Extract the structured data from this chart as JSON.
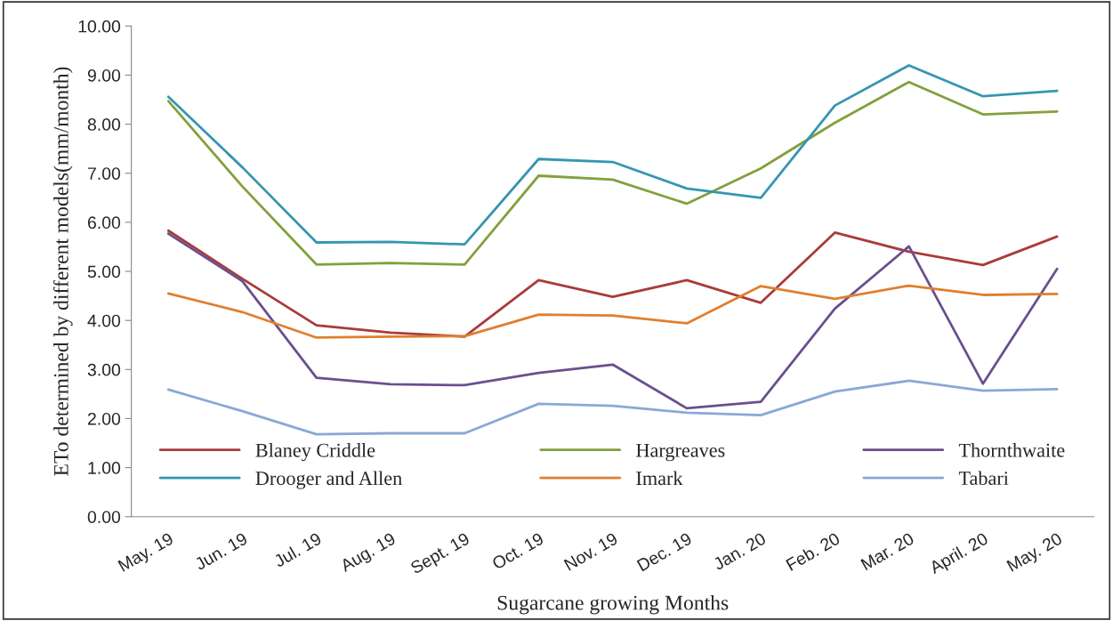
{
  "chart_data": {
    "type": "line",
    "xlabel": "Sugarcane growing Months",
    "ylabel": "ETo determined by different models(mm/month)",
    "categories": [
      "May. 19",
      "Jun. 19",
      "Jul. 19",
      "Aug. 19",
      "Sept. 19",
      "Oct. 19",
      "Nov. 19",
      "Dec. 19",
      "Jan. 20",
      "Feb. 20",
      "Mar. 20",
      "April. 20",
      "May. 20"
    ],
    "series": [
      {
        "name": "Blaney Criddle",
        "color": "#a83c3a",
        "values": [
          5.83,
          4.85,
          3.9,
          3.75,
          3.67,
          4.82,
          4.48,
          4.82,
          4.36,
          5.79,
          5.4,
          5.13,
          5.71
        ]
      },
      {
        "name": "Hargreaves",
        "color": "#83a03c",
        "values": [
          8.47,
          6.73,
          5.14,
          5.17,
          5.14,
          6.95,
          6.87,
          6.38,
          7.1,
          8.03,
          8.86,
          8.2,
          8.26
        ]
      },
      {
        "name": "Thornthwaite",
        "color": "#6a4f8f",
        "values": [
          5.77,
          4.8,
          2.83,
          2.7,
          2.68,
          2.93,
          3.1,
          2.21,
          2.34,
          4.24,
          5.51,
          2.71,
          5.05
        ]
      },
      {
        "name": "Drooger and Allen",
        "color": "#3596b0",
        "values": [
          8.56,
          7.12,
          5.59,
          5.6,
          5.55,
          7.29,
          7.23,
          6.69,
          6.5,
          8.38,
          9.2,
          8.57,
          8.68
        ]
      },
      {
        "name": "Imark",
        "color": "#e07f2f",
        "values": [
          4.55,
          4.17,
          3.65,
          3.67,
          3.68,
          4.12,
          4.1,
          3.94,
          4.7,
          4.44,
          4.71,
          4.52,
          4.54
        ]
      },
      {
        "name": "Tabari",
        "color": "#8aa8d6",
        "values": [
          2.59,
          2.15,
          1.68,
          1.7,
          1.7,
          2.3,
          2.26,
          2.12,
          2.07,
          2.55,
          2.77,
          2.57,
          2.6
        ]
      }
    ],
    "ylim": [
      0,
      10
    ],
    "yticks": [
      {
        "value": 0,
        "label": "0.00"
      },
      {
        "value": 1,
        "label": "1.00"
      },
      {
        "value": 2,
        "label": "2.00"
      },
      {
        "value": 3,
        "label": "3.00"
      },
      {
        "value": 4,
        "label": "4.00"
      },
      {
        "value": 5,
        "label": "5.00"
      },
      {
        "value": 6,
        "label": "6.00"
      },
      {
        "value": 7,
        "label": "7.00"
      },
      {
        "value": 8,
        "label": "8.00"
      },
      {
        "value": 9,
        "label": "9.00"
      },
      {
        "value": 10,
        "label": "10.00"
      }
    ],
    "grid": false,
    "legend": "bottom",
    "marker": "none",
    "line_style": "solid"
  }
}
